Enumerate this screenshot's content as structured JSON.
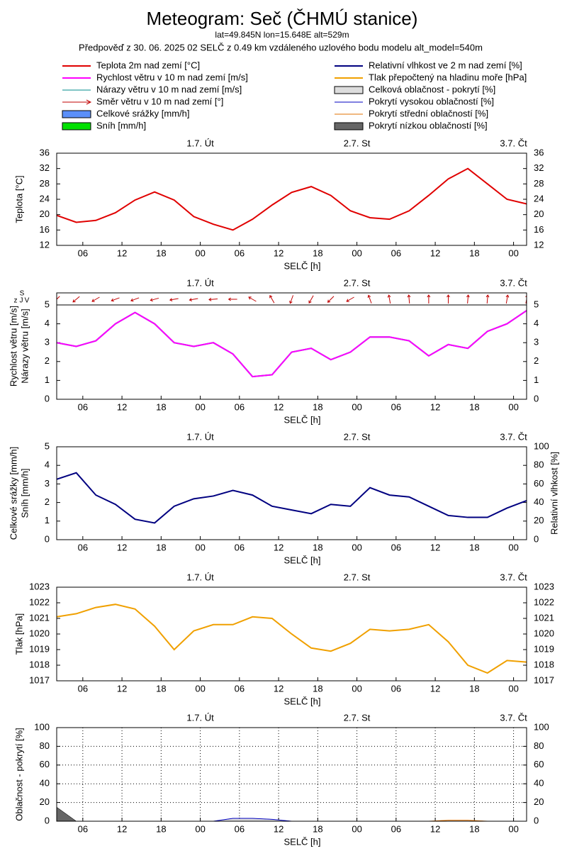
{
  "chart_data": {
    "type": "meteogram",
    "title": "Meteogram: Seč (ČHMÚ stanice)",
    "subtitle": "lat=49.845N lon=15.648E alt=529m",
    "note": "Předpověď z 30. 06. 2025 02 SELČ z 0.49 km vzdáleného uzlového bodu modelu alt_model=540m",
    "x": [
      0,
      3,
      6,
      9,
      12,
      15,
      18,
      21,
      24,
      27,
      30,
      33,
      36,
      39,
      42,
      45,
      48,
      51,
      54,
      57,
      60,
      63,
      66,
      69,
      72
    ],
    "xlim": [
      0,
      72
    ],
    "xticks": [
      {
        "value": 4,
        "label": "06"
      },
      {
        "value": 10,
        "label": "12"
      },
      {
        "value": 16,
        "label": "18"
      },
      {
        "value": 22,
        "label": "00"
      },
      {
        "value": 28,
        "label": "06"
      },
      {
        "value": 34,
        "label": "12"
      },
      {
        "value": 40,
        "label": "18"
      },
      {
        "value": 46,
        "label": "00"
      },
      {
        "value": 52,
        "label": "06"
      },
      {
        "value": 58,
        "label": "12"
      },
      {
        "value": 64,
        "label": "18"
      },
      {
        "value": 70,
        "label": "00"
      }
    ],
    "day_labels": [
      {
        "value": 22,
        "label": "1.7. Út"
      },
      {
        "value": 46,
        "label": "2.7. St"
      },
      {
        "value": 70,
        "label": "3.7. Čt"
      }
    ],
    "xlabel": "SELČ [h]",
    "panels": [
      {
        "type": "line",
        "ylabel": [
          "Teplota [°C]"
        ],
        "ylim": [
          12,
          36
        ],
        "yticks": [
          12,
          16,
          20,
          24,
          28,
          32,
          36
        ],
        "y2lim": [
          12,
          36
        ],
        "y2ticks": [
          12,
          16,
          20,
          24,
          28,
          32,
          36
        ],
        "grid": false,
        "series": [
          {
            "name": "Teplota 2m nad zemí [°C]",
            "color": "#e00000",
            "kind": "line",
            "values": [
              19.8,
              18.0,
              18.5,
              20.5,
              23.8,
              25.9,
              23.8,
              19.5,
              17.5,
              16.0,
              18.8,
              22.5,
              25.8,
              27.3,
              25.0,
              21.0,
              19.2,
              18.8,
              21.0,
              25.0,
              29.3,
              32.0,
              28.0,
              24.0,
              22.8
            ]
          }
        ]
      },
      {
        "type": "line",
        "ylabel": [
          "Rychlost větru [m/s]",
          "Nárazy větru [m/s]"
        ],
        "direction_labels": [
          "z",
          "S",
          "J",
          "V"
        ],
        "ylim": [
          0,
          5
        ],
        "yticks": [
          0,
          1,
          2,
          3,
          4,
          5
        ],
        "y2lim": [
          0,
          5
        ],
        "y2ticks": [
          0,
          1,
          2,
          3,
          4,
          5
        ],
        "grid": false,
        "series": [
          {
            "name": "Rychlost větru v 10 m nad zemí [m/s]",
            "color": "#ff00ff",
            "kind": "line",
            "values": [
              3.0,
              2.8,
              3.1,
              4.0,
              4.6,
              4.0,
              3.0,
              2.8,
              3.0,
              2.4,
              1.2,
              1.3,
              2.5,
              2.7,
              2.1,
              2.5,
              3.3,
              3.3,
              3.1,
              2.3,
              2.9,
              2.7,
              3.6,
              4.0,
              4.7
            ]
          },
          {
            "name": "Nárazy větru v 10 m nad zemí [m/s]",
            "color": "#008b8b",
            "kind": "line",
            "values": [
              3.0,
              2.8,
              3.1,
              4.0,
              4.6,
              4.0,
              3.0,
              2.8,
              3.0,
              2.4,
              1.2,
              1.3,
              2.5,
              2.7,
              2.1,
              2.5,
              3.3,
              3.3,
              3.1,
              2.3,
              2.9,
              2.7,
              3.6,
              4.0,
              4.7
            ]
          },
          {
            "name": "Směr větru v 10 m nad zemí [°]",
            "color": "#c00000",
            "kind": "arrows",
            "values": [
              45,
              50,
              60,
              70,
              70,
              75,
              80,
              80,
              85,
              90,
              120,
              150,
              20,
              30,
              45,
              60,
              160,
              170,
              175,
              180,
              180,
              185,
              185,
              190,
              190
            ]
          }
        ]
      },
      {
        "type": "line",
        "ylabel": [
          "Celkové srážky [mm/h]",
          "Sníh [mm/h]"
        ],
        "y2label": "Relativní vlhkost [%]",
        "ylim": [
          0,
          5
        ],
        "yticks": [
          0,
          1,
          2,
          3,
          4,
          5
        ],
        "y2lim": [
          0,
          100
        ],
        "y2ticks": [
          0,
          20,
          40,
          60,
          80,
          100
        ],
        "grid": false,
        "series": [
          {
            "name": "Celkové srážky [mm/h]",
            "color": "#5b8ff9",
            "kind": "bars",
            "values": [
              0,
              0,
              0,
              0,
              0,
              0,
              0,
              0,
              0,
              0,
              0,
              0,
              0,
              0,
              0,
              0,
              0,
              0,
              0,
              0,
              0,
              0,
              0,
              0,
              0
            ]
          },
          {
            "name": "Sníh [mm/h]",
            "color": "#00e000",
            "kind": "bars",
            "values": [
              0,
              0,
              0,
              0,
              0,
              0,
              0,
              0,
              0,
              0,
              0,
              0,
              0,
              0,
              0,
              0,
              0,
              0,
              0,
              0,
              0,
              0,
              0,
              0,
              0
            ]
          },
          {
            "name": "Relativní vlhkost ve 2 m nad zemí [%]",
            "color": "#000080",
            "kind": "line",
            "axis": "y2",
            "values": [
              65,
              72,
              48,
              38,
              22,
              18,
              36,
              44,
              47,
              53,
              48,
              36,
              32,
              28,
              38,
              36,
              56,
              48,
              46,
              36,
              26,
              24,
              24,
              34,
              42
            ]
          }
        ]
      },
      {
        "type": "line",
        "ylabel": [
          "Tlak [hPa]"
        ],
        "ylim": [
          1017,
          1023
        ],
        "yticks": [
          1017,
          1018,
          1019,
          1020,
          1021,
          1022,
          1023
        ],
        "y2lim": [
          1017,
          1023
        ],
        "y2ticks": [
          1017,
          1018,
          1019,
          1020,
          1021,
          1022,
          1023
        ],
        "grid": false,
        "series": [
          {
            "name": "Tlak přepočtený na hladinu moře [hPa]",
            "color": "#f0a000",
            "kind": "line",
            "values": [
              1021.1,
              1021.3,
              1021.7,
              1021.9,
              1021.6,
              1020.5,
              1019.0,
              1020.2,
              1020.6,
              1020.6,
              1021.1,
              1021.0,
              1020.0,
              1019.1,
              1018.9,
              1019.4,
              1020.3,
              1020.2,
              1020.3,
              1020.6,
              1019.5,
              1018.0,
              1017.5,
              1018.3,
              1018.2
            ]
          }
        ]
      },
      {
        "type": "line",
        "ylabel": [
          "Oblačnost - pokrytí [%]"
        ],
        "ylim": [
          0,
          100
        ],
        "yticks": [
          0,
          20,
          40,
          60,
          80,
          100
        ],
        "y2lim": [
          0,
          100
        ],
        "y2ticks": [
          0,
          20,
          40,
          60,
          80,
          100
        ],
        "grid": true,
        "series": [
          {
            "name": "Celková oblačnost - pokrytí [%]",
            "color": "#dddddd",
            "kind": "area",
            "values": [
              15,
              0,
              0,
              0,
              0,
              0,
              0,
              0,
              0,
              3,
              3,
              2,
              0,
              0,
              0,
              0,
              0,
              0,
              0,
              0,
              1,
              1,
              0,
              0,
              0
            ]
          },
          {
            "name": "Pokrytí vysokou oblačností [%]",
            "color": "#0000c0",
            "kind": "line",
            "values": [
              0,
              0,
              0,
              0,
              0,
              0,
              0,
              0,
              0,
              3,
              3,
              2,
              0,
              0,
              0,
              0,
              0,
              0,
              0,
              0,
              0,
              0,
              0,
              0,
              0
            ]
          },
          {
            "name": "Pokrytí střední oblačností [%]",
            "color": "#e07000",
            "kind": "line",
            "values": [
              0,
              0,
              0,
              0,
              0,
              0,
              0,
              0,
              0,
              0,
              0,
              0,
              0,
              0,
              0,
              0,
              0,
              0,
              0,
              0,
              1,
              1,
              0,
              0,
              0
            ]
          },
          {
            "name": "Pokrytí nízkou oblačností [%]",
            "color": "#666666",
            "kind": "area",
            "values": [
              15,
              0,
              0,
              0,
              0,
              0,
              0,
              0,
              0,
              0,
              0,
              0,
              0,
              0,
              0,
              0,
              0,
              0,
              0,
              0,
              0,
              0,
              0,
              0,
              0
            ]
          }
        ]
      }
    ]
  }
}
